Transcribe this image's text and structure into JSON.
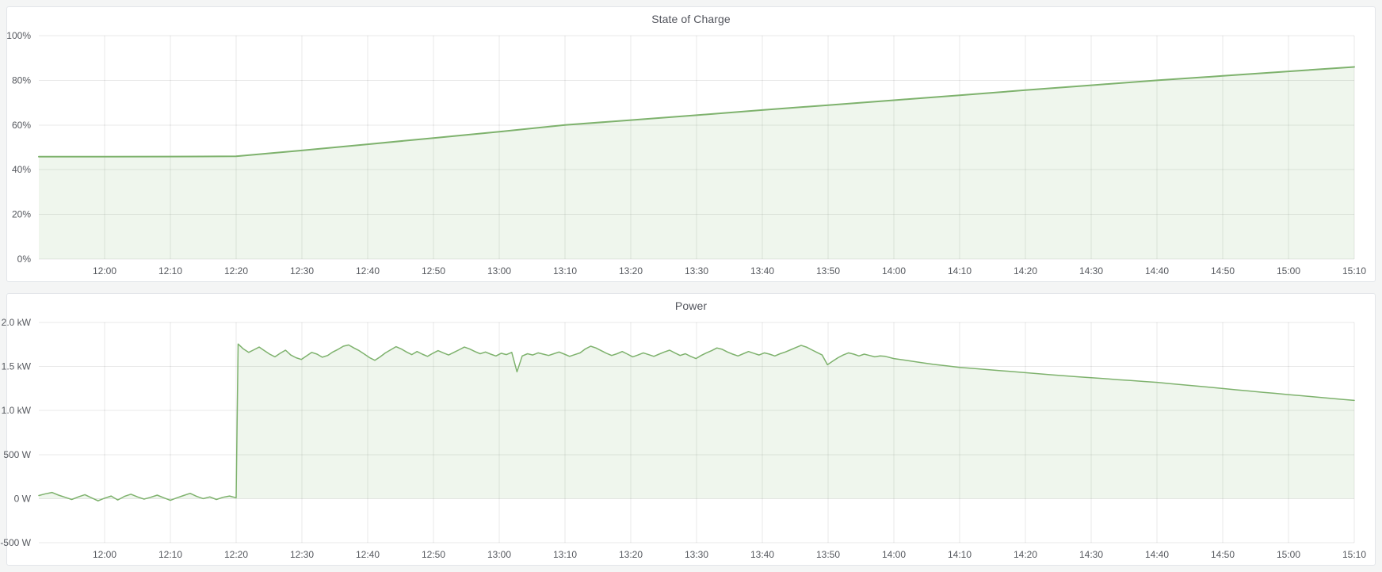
{
  "chart_data": [
    {
      "type": "area",
      "title": "State of Charge",
      "color": "#7EB26D",
      "fill": "rgba(126,178,109,0.12)",
      "line_width": 2,
      "xlabel": "",
      "ylabel": "",
      "xlim": [
        0,
        200
      ],
      "ylim": [
        0,
        100
      ],
      "grid": true,
      "legend": "none",
      "fill_to": 0,
      "x_ticks": [
        {
          "t": 10,
          "label": "12:00"
        },
        {
          "t": 20,
          "label": "12:10"
        },
        {
          "t": 30,
          "label": "12:20"
        },
        {
          "t": 40,
          "label": "12:30"
        },
        {
          "t": 50,
          "label": "12:40"
        },
        {
          "t": 60,
          "label": "12:50"
        },
        {
          "t": 70,
          "label": "13:00"
        },
        {
          "t": 80,
          "label": "13:10"
        },
        {
          "t": 90,
          "label": "13:20"
        },
        {
          "t": 100,
          "label": "13:30"
        },
        {
          "t": 110,
          "label": "13:40"
        },
        {
          "t": 120,
          "label": "13:50"
        },
        {
          "t": 130,
          "label": "14:00"
        },
        {
          "t": 140,
          "label": "14:10"
        },
        {
          "t": 150,
          "label": "14:20"
        },
        {
          "t": 160,
          "label": "14:30"
        },
        {
          "t": 170,
          "label": "14:40"
        },
        {
          "t": 180,
          "label": "14:50"
        },
        {
          "t": 190,
          "label": "15:00"
        },
        {
          "t": 200,
          "label": "15:10"
        }
      ],
      "y_ticks": [
        {
          "v": 0,
          "label": "0%"
        },
        {
          "v": 20,
          "label": "20%"
        },
        {
          "v": 40,
          "label": "40%"
        },
        {
          "v": 60,
          "label": "60%"
        },
        {
          "v": 80,
          "label": "80%"
        },
        {
          "v": 100,
          "label": "100%"
        }
      ],
      "series": [
        {
          "name": "State of Charge",
          "unit": "%",
          "segments": [
            {
              "t0": 0,
              "dt": 10,
              "values": [
                45.8,
                45.8,
                45.9,
                46.0,
                48.6,
                51.4,
                54.2,
                57.0,
                60.0,
                62.2,
                64.4,
                66.7,
                68.9,
                71.1,
                73.3,
                75.6,
                77.8,
                80.0,
                82.0,
                84.0,
                86.0
              ]
            }
          ]
        }
      ]
    },
    {
      "type": "area",
      "title": "Power",
      "color": "#7EB26D",
      "fill": "rgba(126,178,109,0.12)",
      "line_width": 1.5,
      "xlabel": "",
      "ylabel": "",
      "xlim": [
        0,
        200
      ],
      "ylim": [
        -500,
        2000
      ],
      "grid": true,
      "legend": "none",
      "fill_to": 0,
      "x_ticks": [
        {
          "t": 10,
          "label": "12:00"
        },
        {
          "t": 20,
          "label": "12:10"
        },
        {
          "t": 30,
          "label": "12:20"
        },
        {
          "t": 40,
          "label": "12:30"
        },
        {
          "t": 50,
          "label": "12:40"
        },
        {
          "t": 60,
          "label": "12:50"
        },
        {
          "t": 70,
          "label": "13:00"
        },
        {
          "t": 80,
          "label": "13:10"
        },
        {
          "t": 90,
          "label": "13:20"
        },
        {
          "t": 100,
          "label": "13:30"
        },
        {
          "t": 110,
          "label": "13:40"
        },
        {
          "t": 120,
          "label": "13:50"
        },
        {
          "t": 130,
          "label": "14:00"
        },
        {
          "t": 140,
          "label": "14:10"
        },
        {
          "t": 150,
          "label": "14:20"
        },
        {
          "t": 160,
          "label": "14:30"
        },
        {
          "t": 170,
          "label": "14:40"
        },
        {
          "t": 180,
          "label": "14:50"
        },
        {
          "t": 190,
          "label": "15:00"
        },
        {
          "t": 200,
          "label": "15:10"
        }
      ],
      "y_ticks": [
        {
          "v": -500,
          "label": "-500 W"
        },
        {
          "v": 0,
          "label": "0 W"
        },
        {
          "v": 500,
          "label": "500 W"
        },
        {
          "v": 1000,
          "label": "1.0 kW"
        },
        {
          "v": 1500,
          "label": "1.5 kW"
        },
        {
          "v": 2000,
          "label": "2.0 kW"
        }
      ],
      "series": [
        {
          "name": "Power",
          "unit": "W",
          "segments": [
            {
              "t0": 0,
              "dt": 1,
              "values": [
                35,
                55,
                70,
                40,
                15,
                -10,
                20,
                45,
                10,
                -25,
                5,
                30,
                -15,
                25,
                50,
                20,
                -5,
                15,
                40,
                10,
                -20,
                10,
                35,
                60,
                25,
                0,
                20,
                -10,
                15,
                30,
                10
              ]
            },
            {
              "t0": 30.3,
              "dt": 0.8,
              "values": [
                1755,
                1700,
                1660,
                1690,
                1720,
                1680,
                1640,
                1610,
                1650,
                1685,
                1630,
                1600,
                1580,
                1620,
                1660,
                1640,
                1605,
                1625,
                1665,
                1695,
                1730,
                1745,
                1710,
                1680,
                1640,
                1600,
                1570,
                1610,
                1655,
                1690,
                1725,
                1700,
                1665,
                1635,
                1670,
                1640,
                1615,
                1650,
                1680,
                1655,
                1630,
                1660,
                1690,
                1720,
                1700,
                1670,
                1645,
                1665,
                1640,
                1620,
                1650,
                1635,
                1660,
                1440,
                1620,
                1645,
                1630,
                1655,
                1640,
                1625,
                1645,
                1665,
                1640,
                1615,
                1635,
                1655,
                1700,
                1730,
                1710,
                1680,
                1650,
                1625,
                1645,
                1670,
                1640,
                1610,
                1630,
                1655,
                1635,
                1615,
                1640,
                1665,
                1685,
                1655,
                1625,
                1645,
                1615,
                1590,
                1625,
                1655,
                1680,
                1710,
                1695,
                1665,
                1640,
                1620,
                1645,
                1670,
                1650,
                1630,
                1655,
                1640,
                1620,
                1645,
                1665,
                1690,
                1715,
                1740,
                1720,
                1690,
                1660,
                1630,
                1520,
                1560,
                1600,
                1630,
                1655,
                1640,
                1620,
                1640,
                1625,
                1610,
                1620,
                1615
              ]
            },
            {
              "t0": 130,
              "dt": 2,
              "values": [
                1590,
                1568,
                1546,
                1524,
                1507,
                1490,
                1478,
                1466,
                1454,
                1442,
                1430,
                1418,
                1406,
                1394,
                1383,
                1372,
                1362,
                1351,
                1341,
                1330,
                1320,
                1306,
                1292,
                1278,
                1264,
                1250,
                1236,
                1222,
                1208,
                1195,
                1181,
                1168,
                1155,
                1141,
                1128,
                1115
              ]
            }
          ]
        }
      ]
    }
  ]
}
